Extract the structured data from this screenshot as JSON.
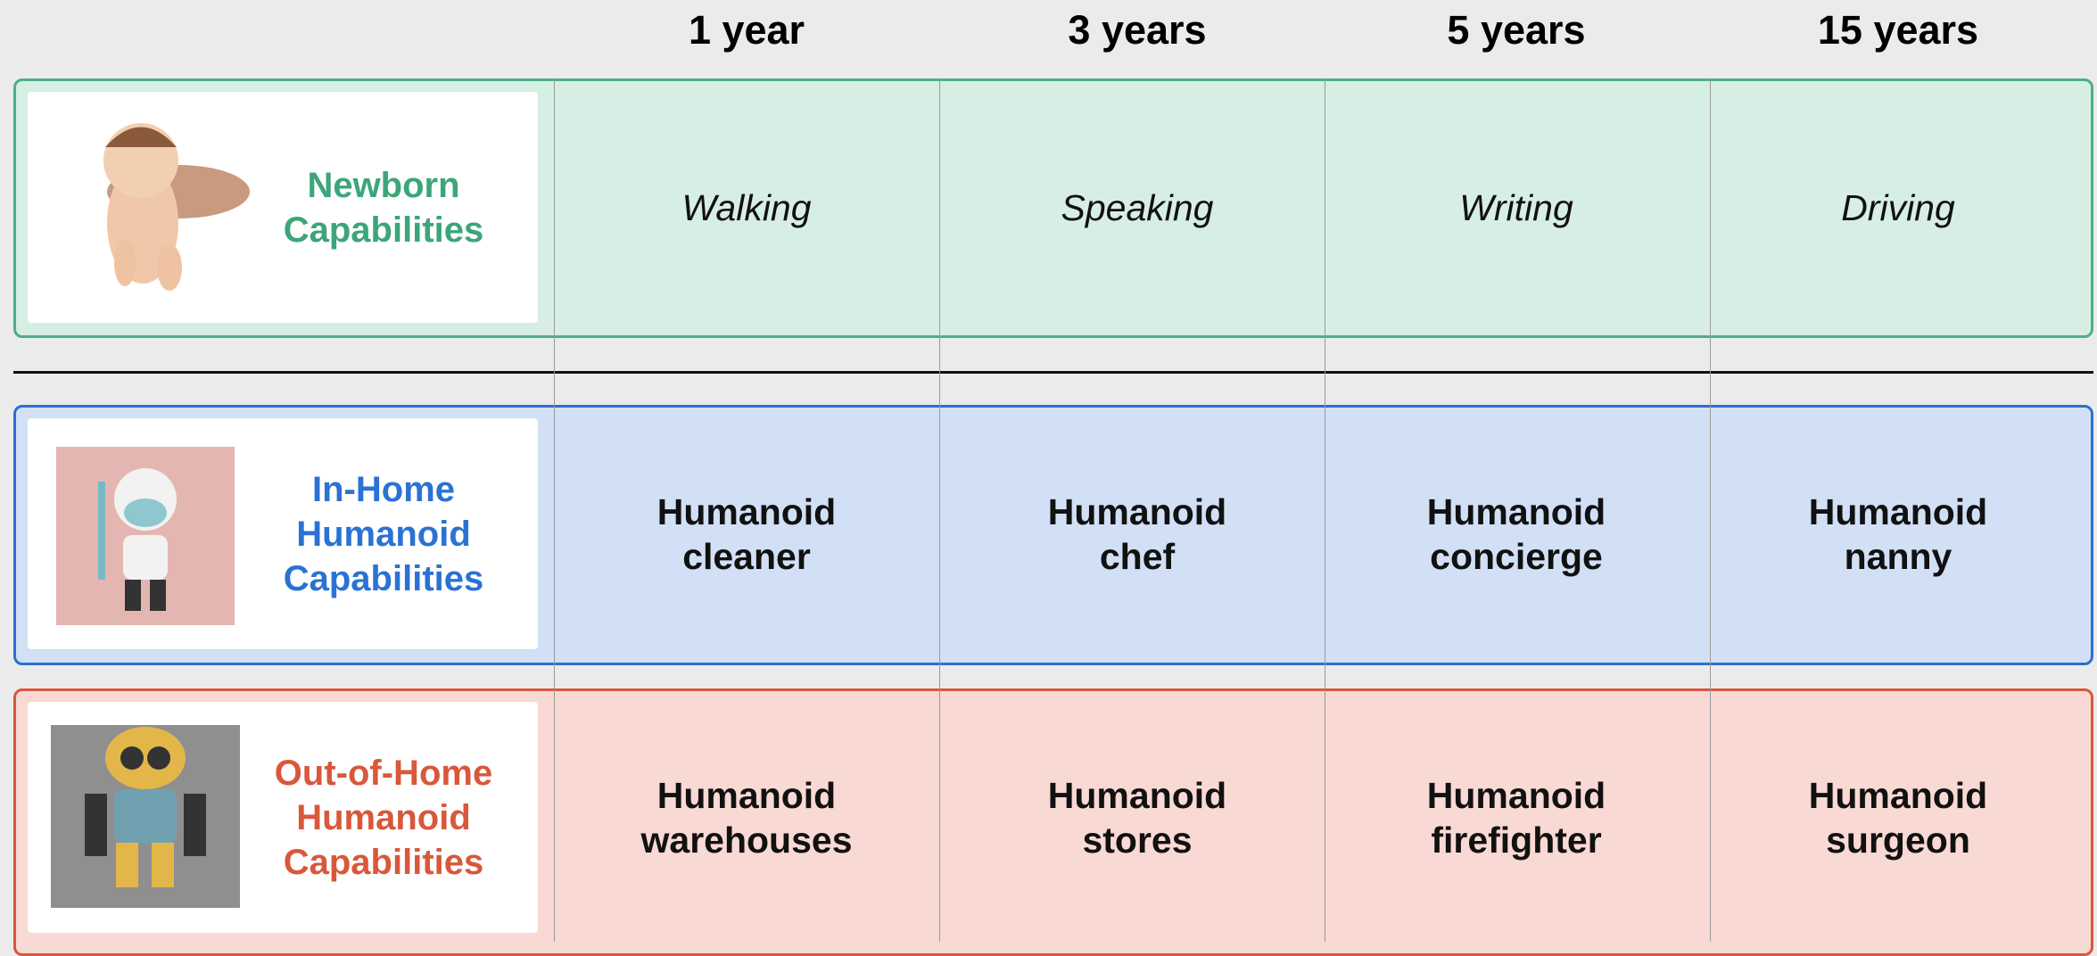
{
  "columns": [
    "1 year",
    "3 years",
    "5 years",
    "15 years"
  ],
  "rows": [
    {
      "label_lines": [
        "Newborn",
        "Capabilities"
      ],
      "cells": [
        [
          "Walking"
        ],
        [
          "Speaking"
        ],
        [
          "Writing"
        ],
        [
          "Driving"
        ]
      ]
    },
    {
      "label_lines": [
        "In-Home",
        "Humanoid",
        "Capabilities"
      ],
      "cells": [
        [
          "Humanoid",
          "cleaner"
        ],
        [
          "Humanoid",
          "chef"
        ],
        [
          "Humanoid",
          "concierge"
        ],
        [
          "Humanoid",
          "nanny"
        ]
      ]
    },
    {
      "label_lines": [
        "Out-of-Home",
        "Humanoid",
        "Capabilities"
      ],
      "cells": [
        [
          "Humanoid",
          "warehouses"
        ],
        [
          "Humanoid",
          "stores"
        ],
        [
          "Humanoid",
          "firefighter"
        ],
        [
          "Humanoid",
          "surgeon"
        ]
      ]
    }
  ]
}
